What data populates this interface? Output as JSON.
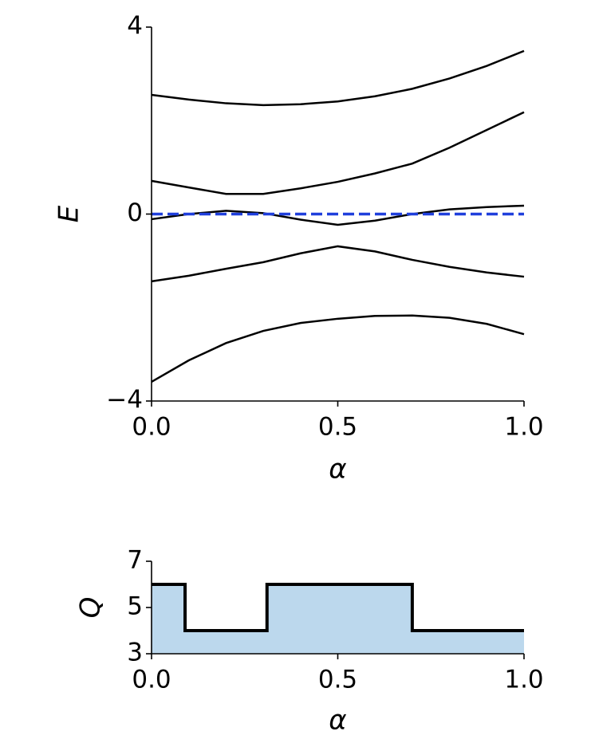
{
  "chart_data": [
    {
      "type": "line",
      "ylabel": "E",
      "xlabel": "α",
      "x": [
        0,
        0.1,
        0.2,
        0.3,
        0.4,
        0.5,
        0.6,
        0.7,
        0.8,
        0.9,
        1.0
      ],
      "series": [
        {
          "color": "#000000",
          "values": [
            2.55,
            2.45,
            2.37,
            2.33,
            2.35,
            2.41,
            2.52,
            2.68,
            2.9,
            3.17,
            3.49
          ]
        },
        {
          "color": "#000000",
          "values": [
            0.71,
            0.57,
            0.43,
            0.43,
            0.55,
            0.69,
            0.87,
            1.08,
            1.42,
            1.8,
            2.18
          ]
        },
        {
          "color": "#000000",
          "values": [
            -0.11,
            0,
            0.07,
            0.02,
            -0.12,
            -0.23,
            -0.14,
            0,
            0.1,
            0.15,
            0.18
          ]
        },
        {
          "color": "#000000",
          "values": [
            -1.44,
            -1.32,
            -1.17,
            -1.03,
            -0.84,
            -0.69,
            -0.8,
            -0.98,
            -1.13,
            -1.25,
            -1.34
          ]
        },
        {
          "color": "#000000",
          "values": [
            -3.59,
            -3.13,
            -2.76,
            -2.5,
            -2.33,
            -2.24,
            -2.18,
            -2.17,
            -2.22,
            -2.35,
            -2.57
          ]
        }
      ],
      "reference_line": {
        "value": 0,
        "color": "#1f3fdc",
        "dashed": true
      },
      "xlim": [
        0,
        1.0
      ],
      "xticks": [
        {
          "value": 0,
          "label": "0.0"
        },
        {
          "value": 0.5,
          "label": "0.5"
        },
        {
          "value": 1.0,
          "label": "1.0"
        }
      ],
      "ylim": [
        -4,
        4
      ],
      "yticks": [
        {
          "value": -4,
          "label": "−4"
        },
        0,
        4
      ]
    },
    {
      "type": "step",
      "ylabel": "Q",
      "xlabel": "α",
      "x": [
        0,
        0.09,
        0.09,
        0.31,
        0.31,
        0.7,
        0.7,
        1.0
      ],
      "values": [
        6,
        6,
        4,
        4,
        6,
        6,
        4,
        4
      ],
      "color": "#000000",
      "fill": "#bcd8ed",
      "xlim": [
        0,
        1.0
      ],
      "xticks": [
        {
          "value": 0,
          "label": "0.0"
        },
        {
          "value": 0.5,
          "label": "0.5"
        },
        {
          "value": 1.0,
          "label": "1.0"
        }
      ],
      "ylim": [
        3,
        7
      ],
      "yticks": [
        3,
        5,
        7
      ]
    }
  ]
}
